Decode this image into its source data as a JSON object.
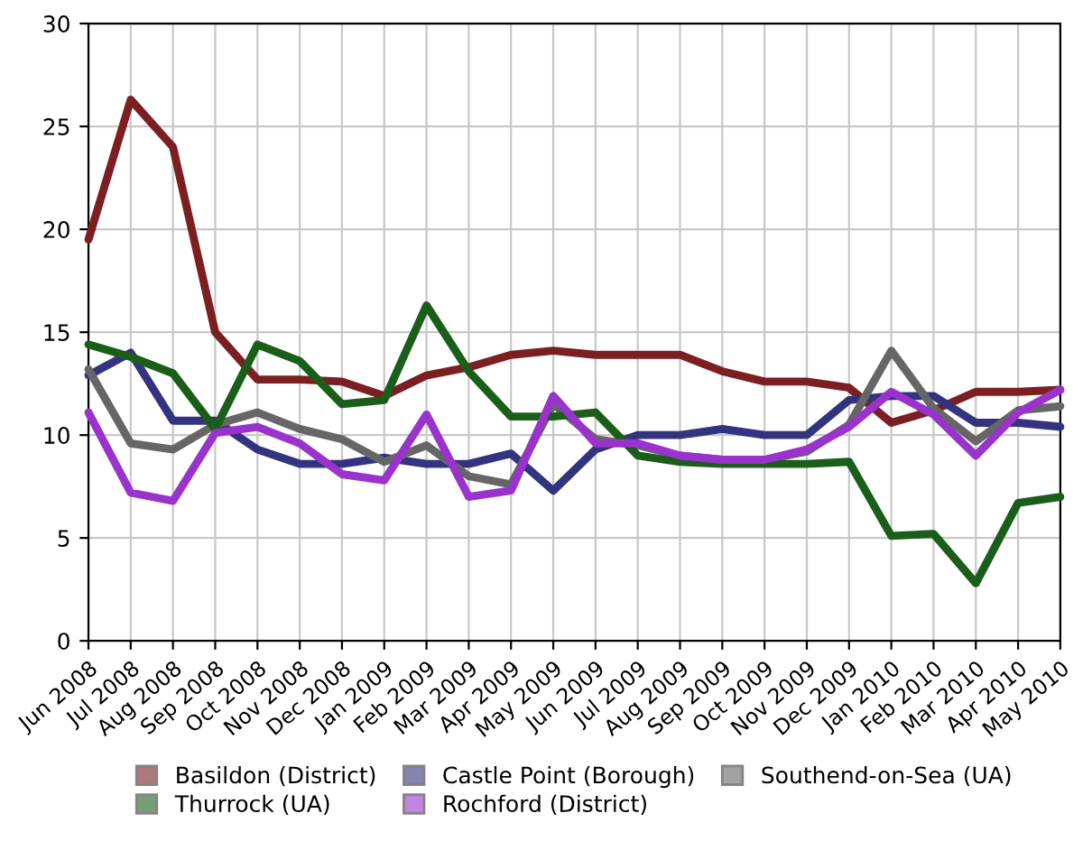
{
  "chart_data": {
    "type": "line",
    "categories": [
      "Jun 2008",
      "Jul 2008",
      "Aug 2008",
      "Sep 2008",
      "Oct 2008",
      "Nov 2008",
      "Dec 2008",
      "Jan 2009",
      "Feb 2009",
      "Mar 2009",
      "Apr 2009",
      "May 2009",
      "Jun 2009",
      "Jul 2009",
      "Aug 2009",
      "Sep 2009",
      "Oct 2009",
      "Nov 2009",
      "Dec 2009",
      "Jan 2010",
      "Feb 2010",
      "Mar 2010",
      "Apr 2010",
      "May 2010"
    ],
    "series": [
      {
        "name": "Basildon (District)",
        "color": "#7b1f22",
        "values": [
          19.5,
          26.3,
          24,
          15,
          12.7,
          12.7,
          12.6,
          11.9,
          12.9,
          13.3,
          13.9,
          14.1,
          13.9,
          13.9,
          13.9,
          13.1,
          12.6,
          12.6,
          12.3,
          10.6,
          11.2,
          12.1,
          12.1,
          12.2
        ]
      },
      {
        "name": "Castle Point (Borough)",
        "color": "#33337f",
        "values": [
          12.9,
          14.0,
          10.7,
          10.7,
          9.3,
          8.6,
          8.6,
          8.9,
          8.6,
          8.6,
          9.1,
          7.3,
          9.3,
          10.0,
          10.0,
          10.3,
          10.0,
          10.0,
          11.7,
          11.9,
          11.9,
          10.6,
          10.6,
          10.4
        ]
      },
      {
        "name": "Southend-on-Sea (UA)",
        "color": "#666666",
        "values": [
          13.2,
          9.6,
          9.3,
          10.5,
          11.1,
          10.3,
          9.8,
          8.7,
          9.5,
          8.0,
          7.6,
          11.5,
          9.8,
          9.5,
          9.0,
          8.8,
          8.8,
          9.2,
          10.5,
          14.1,
          11.3,
          9.7,
          11.2,
          11.4
        ]
      },
      {
        "name": "Thurrock (UA)",
        "color": "#1a5e1a",
        "values": [
          14.4,
          13.8,
          13.0,
          10.3,
          14.4,
          13.6,
          11.5,
          11.7,
          16.3,
          13.1,
          10.9,
          10.9,
          11.1,
          9.0,
          8.7,
          8.6,
          8.6,
          8.6,
          8.7,
          5.1,
          5.2,
          2.8,
          6.7,
          7.0
        ]
      },
      {
        "name": "Rochford (District)",
        "color": "#9933cc",
        "values": [
          11.1,
          7.2,
          6.8,
          10.1,
          10.4,
          9.6,
          8.1,
          7.8,
          11.0,
          7.0,
          7.3,
          11.9,
          9.6,
          9.6,
          9.0,
          8.8,
          8.8,
          9.3,
          10.4,
          12.1,
          11.0,
          9.0,
          11.1,
          12.2
        ]
      }
    ],
    "ylim": [
      0,
      30
    ],
    "yticks": [
      0,
      5,
      10,
      15,
      20,
      25,
      30
    ],
    "grid": true,
    "legend": "bottom",
    "marker": "none",
    "line_style": "solid"
  }
}
